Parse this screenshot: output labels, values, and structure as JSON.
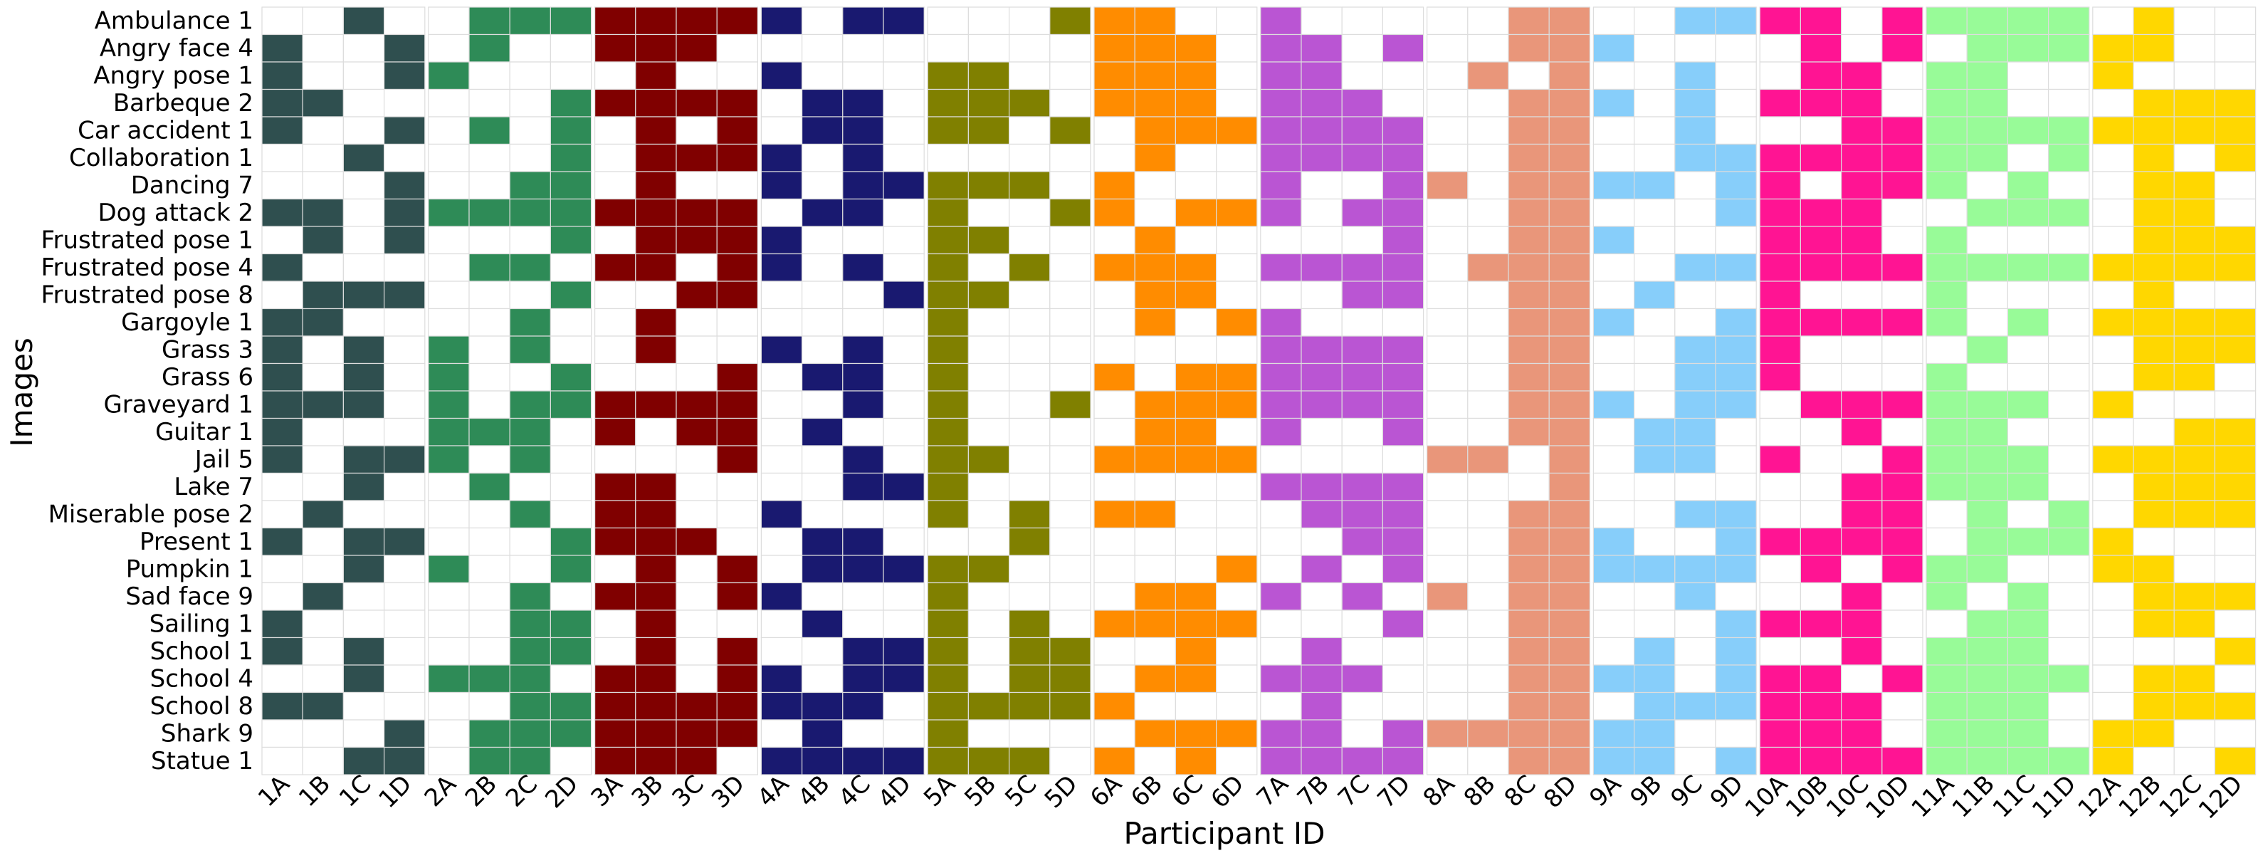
{
  "chart_data": {
    "type": "heatmap",
    "title": "",
    "xlabel": "Participant ID",
    "ylabel": "Images",
    "grid": true,
    "legend": "none",
    "empty_color": "#ffffff",
    "grid_color": "#dddddd",
    "rows": [
      "Ambulance 1",
      "Angry face 4",
      "Angry pose 1",
      "Barbeque 2",
      "Car accident 1",
      "Collaboration 1",
      "Dancing 7",
      "Dog attack 2",
      "Frustrated pose 1",
      "Frustrated pose 4",
      "Frustrated pose 8",
      "Gargoyle 1",
      "Grass 3",
      "Grass 6",
      "Graveyard 1",
      "Guitar 1",
      "Jail 5",
      "Lake 7",
      "Miserable pose 2",
      "Present 1",
      "Pumpkin 1",
      "Sad face 9",
      "Sailing 1",
      "School 1",
      "School 4",
      "School 8",
      "Shark 9",
      "Statue 1"
    ],
    "groups": [
      {
        "participant": "1",
        "color": "#2f4f4f",
        "columns": [
          "1A",
          "1B",
          "1C",
          "1D"
        ],
        "cells": [
          "0010",
          "1001",
          "1001",
          "1100",
          "1001",
          "0010",
          "0001",
          "1101",
          "0101",
          "1000",
          "0111",
          "1100",
          "1010",
          "1010",
          "1110",
          "1000",
          "1011",
          "0010",
          "0100",
          "1011",
          "0010",
          "0100",
          "1000",
          "1010",
          "0010",
          "1100",
          "0001",
          "0011"
        ]
      },
      {
        "participant": "2",
        "color": "#2e8b57",
        "columns": [
          "2A",
          "2B",
          "2C",
          "2D"
        ],
        "cells": [
          "0111",
          "0100",
          "1000",
          "0001",
          "0101",
          "0001",
          "0011",
          "1111",
          "0001",
          "0110",
          "0001",
          "0010",
          "1010",
          "1001",
          "1011",
          "1110",
          "1010",
          "0100",
          "0010",
          "0001",
          "1001",
          "0010",
          "0011",
          "0011",
          "1110",
          "0011",
          "0111",
          "0110"
        ]
      },
      {
        "participant": "3",
        "color": "#800000",
        "columns": [
          "3A",
          "3B",
          "3C",
          "3D"
        ],
        "cells": [
          "1111",
          "1110",
          "0100",
          "1111",
          "0101",
          "0111",
          "0100",
          "1111",
          "0111",
          "1101",
          "0011",
          "0100",
          "0100",
          "0001",
          "1111",
          "1011",
          "0001",
          "1100",
          "1100",
          "1110",
          "0101",
          "1101",
          "0100",
          "0101",
          "1101",
          "1111",
          "1111",
          "1110"
        ]
      },
      {
        "participant": "4",
        "color": "#191970",
        "columns": [
          "4A",
          "4B",
          "4C",
          "4D"
        ],
        "cells": [
          "1011",
          "0000",
          "1000",
          "0110",
          "0110",
          "1010",
          "1011",
          "0110",
          "1000",
          "1010",
          "0001",
          "0000",
          "1010",
          "0110",
          "0010",
          "0100",
          "0010",
          "0011",
          "1000",
          "0110",
          "0111",
          "1000",
          "0100",
          "0011",
          "1011",
          "1110",
          "0100",
          "1111"
        ]
      },
      {
        "participant": "5",
        "color": "#808000",
        "columns": [
          "5A",
          "5B",
          "5C",
          "5D"
        ],
        "cells": [
          "0001",
          "0000",
          "1100",
          "1110",
          "1101",
          "0000",
          "1110",
          "1001",
          "1100",
          "1010",
          "1100",
          "1000",
          "1000",
          "1000",
          "1001",
          "1000",
          "1100",
          "1000",
          "1010",
          "0010",
          "1100",
          "1000",
          "1010",
          "1011",
          "1011",
          "1111",
          "1000",
          "1110"
        ]
      },
      {
        "participant": "6",
        "color": "#ff8c00",
        "columns": [
          "6A",
          "6B",
          "6C",
          "6D"
        ],
        "cells": [
          "1100",
          "1110",
          "1110",
          "1110",
          "0111",
          "0100",
          "1000",
          "1011",
          "0100",
          "1110",
          "0110",
          "0101",
          "0000",
          "1011",
          "0111",
          "0110",
          "1111",
          "0000",
          "1100",
          "0000",
          "0001",
          "0110",
          "1111",
          "0010",
          "0110",
          "1000",
          "0111",
          "1010"
        ]
      },
      {
        "participant": "7",
        "color": "#ba55d3",
        "columns": [
          "7A",
          "7B",
          "7C",
          "7D"
        ],
        "cells": [
          "1000",
          "1101",
          "1100",
          "1110",
          "1111",
          "1111",
          "1001",
          "1011",
          "0001",
          "1111",
          "0011",
          "1000",
          "1111",
          "1111",
          "1111",
          "1001",
          "0000",
          "1111",
          "0111",
          "0011",
          "0101",
          "1010",
          "0001",
          "0100",
          "1110",
          "0100",
          "1101",
          "1111"
        ]
      },
      {
        "participant": "8",
        "color": "#e9967a",
        "columns": [
          "8A",
          "8B",
          "8C",
          "8D"
        ],
        "cells": [
          "0011",
          "0011",
          "0101",
          "0011",
          "0011",
          "0011",
          "1011",
          "0011",
          "0011",
          "0111",
          "0011",
          "0011",
          "0011",
          "0011",
          "0011",
          "0011",
          "1101",
          "0001",
          "0011",
          "0011",
          "0011",
          "1011",
          "0011",
          "0011",
          "0011",
          "0011",
          "1111",
          "0011"
        ]
      },
      {
        "participant": "9",
        "color": "#87cefa",
        "columns": [
          "9A",
          "9B",
          "9C",
          "9D"
        ],
        "cells": [
          "0011",
          "1000",
          "0010",
          "1010",
          "0010",
          "0011",
          "1101",
          "0001",
          "1000",
          "0011",
          "0100",
          "1001",
          "0011",
          "0011",
          "1011",
          "0110",
          "0110",
          "0000",
          "0011",
          "1001",
          "1111",
          "0010",
          "0001",
          "0101",
          "1101",
          "0111",
          "1100",
          "1101"
        ]
      },
      {
        "participant": "10",
        "color": "#ff1493",
        "columns": [
          "10A",
          "10B",
          "10C",
          "10D"
        ],
        "cells": [
          "1101",
          "0101",
          "0110",
          "1110",
          "0011",
          "1111",
          "1011",
          "1110",
          "1110",
          "1111",
          "1000",
          "1111",
          "1000",
          "1000",
          "0111",
          "0010",
          "1001",
          "0011",
          "0011",
          "1111",
          "0101",
          "0010",
          "1110",
          "0010",
          "1101",
          "1110",
          "1110",
          "1111"
        ]
      },
      {
        "participant": "11",
        "color": "#98fb98",
        "columns": [
          "11A",
          "11B",
          "11C",
          "11D"
        ],
        "cells": [
          "1111",
          "0111",
          "1100",
          "1100",
          "1111",
          "1101",
          "1010",
          "0111",
          "1000",
          "1111",
          "1000",
          "1010",
          "0100",
          "1000",
          "1110",
          "1100",
          "1110",
          "1110",
          "0101",
          "0111",
          "1100",
          "1010",
          "0110",
          "1110",
          "1111",
          "1110",
          "1110",
          "1111"
        ]
      },
      {
        "participant": "12",
        "color": "#ffd700",
        "columns": [
          "12A",
          "12B",
          "12C",
          "12D"
        ],
        "cells": [
          "0100",
          "1100",
          "1000",
          "0111",
          "1111",
          "0101",
          "0110",
          "0110",
          "0111",
          "1111",
          "0100",
          "1111",
          "0111",
          "0110",
          "1000",
          "0011",
          "1111",
          "0111",
          "0111",
          "1000",
          "1100",
          "0111",
          "0110",
          "0001",
          "0110",
          "0111",
          "1100",
          "1001"
        ]
      }
    ]
  }
}
